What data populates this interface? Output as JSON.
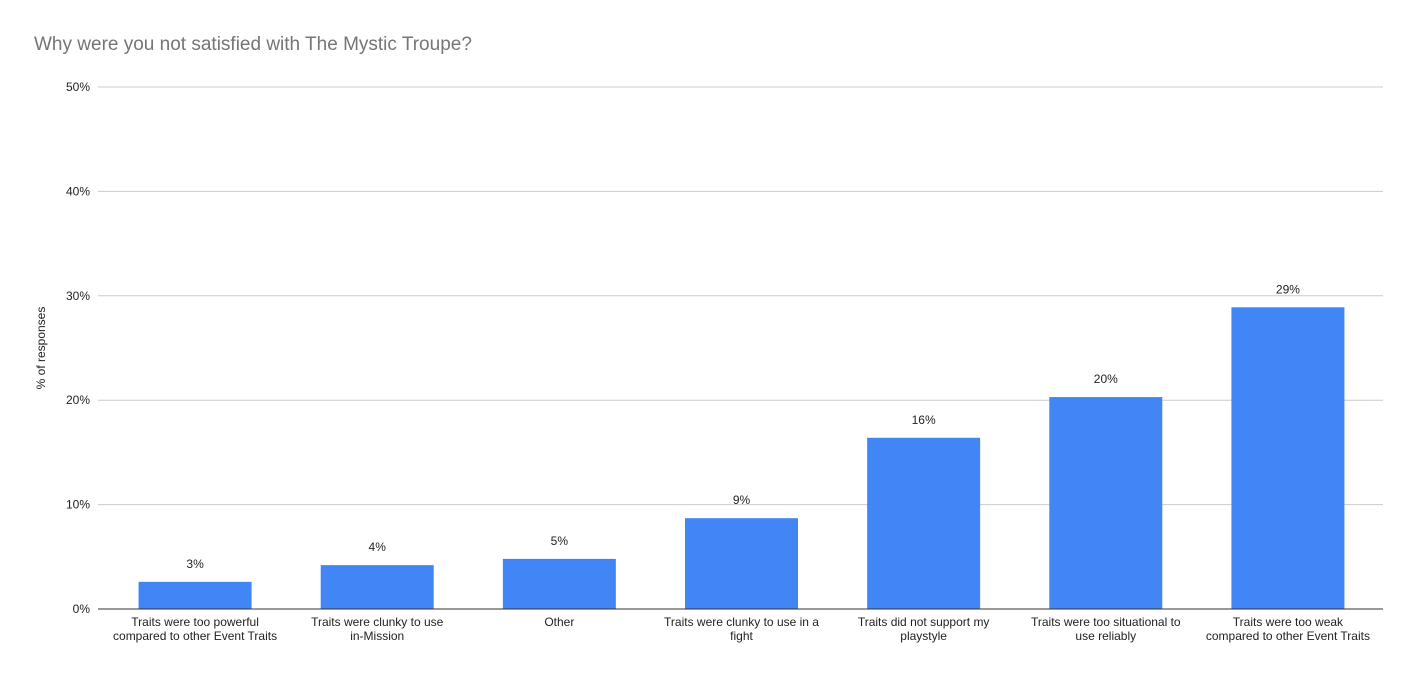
{
  "chart_data": {
    "type": "bar",
    "title": "Why were you not satisfied with The Mystic Troupe?",
    "ylabel": "% of responses",
    "xlabel": "",
    "ylim": [
      0,
      50
    ],
    "yticks": [
      "0%",
      "10%",
      "20%",
      "30%",
      "40%",
      "50%"
    ],
    "ytick_values": [
      0,
      10,
      20,
      30,
      40,
      50
    ],
    "grid": true,
    "bar_color": "#4285f4",
    "categories": [
      "Traits were too powerful compared to other Event Traits",
      "Traits were clunky to use in-Mission",
      "Other",
      "Traits were clunky to use in a fight",
      "Traits did not support my playstyle",
      "Traits were too situational to use reliably",
      "Traits were too weak compared to other Event Traits"
    ],
    "values": [
      2.6,
      4.2,
      4.8,
      8.7,
      16.4,
      20.3,
      28.9
    ],
    "data_labels": [
      "3%",
      "4%",
      "5%",
      "9%",
      "16%",
      "20%",
      "29%"
    ]
  }
}
